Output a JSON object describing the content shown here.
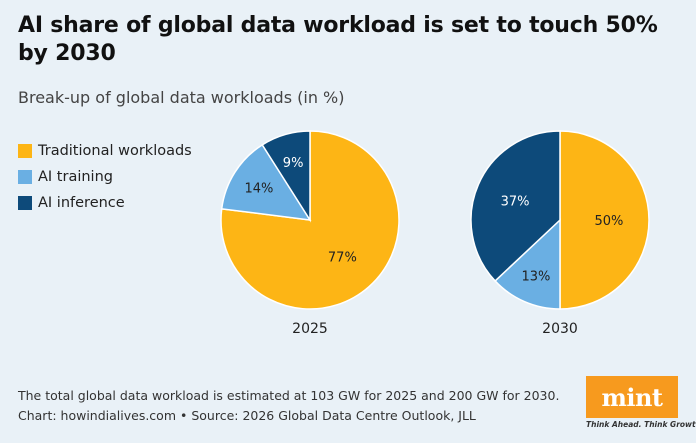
{
  "title": "AI share of global data workload is set to touch 50% by 2030",
  "subtitle": "Break-up of global data workloads (in %)",
  "colors": {
    "traditional": "#fdb515",
    "training": "#6aafe3",
    "inference": "#0d4a7a",
    "background": "#e9f1f7"
  },
  "chart_data": {
    "type": "pie",
    "categories": [
      "Traditional workloads",
      "AI training",
      "AI inference"
    ],
    "series": [
      {
        "name": "2025",
        "values": [
          77,
          14,
          9
        ]
      },
      {
        "name": "2030",
        "values": [
          50,
          13,
          37
        ]
      }
    ],
    "legend": "left"
  },
  "footnote": {
    "line1": "The total global data workload is estimated at 103 GW for 2025 and 200 GW for 2030.",
    "line2": "Chart: howindialives.com • Source: 2026 Global Data Centre Outlook, JLL"
  },
  "logo": {
    "text": "mint",
    "tagline": "Think Ahead. Think Growth."
  }
}
